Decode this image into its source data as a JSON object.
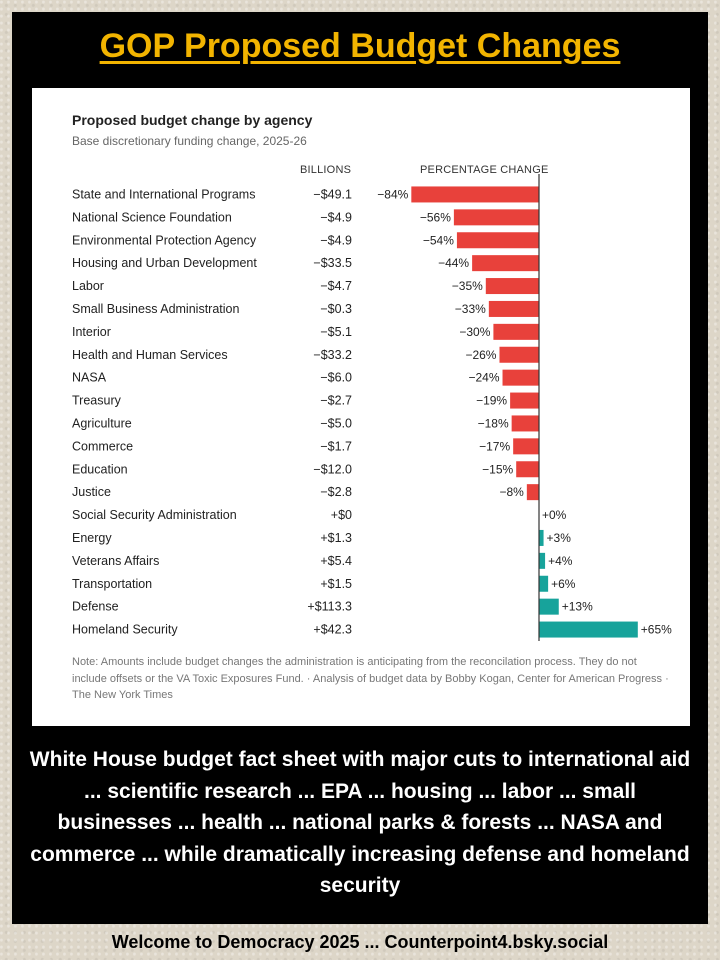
{
  "page": {
    "title": "GOP Proposed Budget Changes",
    "caption": "White House budget fact sheet with major cuts to international aid ... scientific research ... EPA ... housing ... labor ... small businesses ... health ... national parks & forests ... NASA and commerce ... while dramatically increasing defense and homeland security",
    "footer": "Welcome to Democracy 2025 ...  Counterpoint4.bsky.social"
  },
  "chart_data": {
    "type": "bar",
    "orientation": "horizontal",
    "title": "Proposed budget change by agency",
    "subtitle": "Base discretionary funding change, 2025-26",
    "billions_header": "BILLIONS",
    "percent_header": "PERCENTAGE CHANGE",
    "colors": {
      "negative": "#e8413b",
      "positive": "#17a39b"
    },
    "xlim": [
      -84,
      65
    ],
    "categories": [
      "State and International Programs",
      "National Science Foundation",
      "Environmental Protection Agency",
      "Housing and Urban Development",
      "Labor",
      "Small Business Administration",
      "Interior",
      "Health and Human Services",
      "NASA",
      "Treasury",
      "Agriculture",
      "Commerce",
      "Education",
      "Justice",
      "Social Security Administration",
      "Energy",
      "Veterans Affairs",
      "Transportation",
      "Defense",
      "Homeland Security"
    ],
    "billions": [
      "−$49.1",
      "−$4.9",
      "−$4.9",
      "−$33.5",
      "−$4.7",
      "−$0.3",
      "−$5.1",
      "−$33.2",
      "−$6.0",
      "−$2.7",
      "−$5.0",
      "−$1.7",
      "−$12.0",
      "−$2.8",
      "+$0",
      "+$1.3",
      "+$5.4",
      "+$1.5",
      "+$113.3",
      "+$42.3"
    ],
    "percent_labels": [
      "−84%",
      "−56%",
      "−54%",
      "−44%",
      "−35%",
      "−33%",
      "−30%",
      "−26%",
      "−24%",
      "−19%",
      "−18%",
      "−17%",
      "−15%",
      "−8%",
      "+0%",
      "+3%",
      "+4%",
      "+6%",
      "+13%",
      "+65%"
    ],
    "values": [
      -84,
      -56,
      -54,
      -44,
      -35,
      -33,
      -30,
      -26,
      -24,
      -19,
      -18,
      -17,
      -15,
      -8,
      0,
      3,
      4,
      6,
      13,
      65
    ],
    "note": "Note: Amounts include budget changes the administration is anticipating from the reconcilation process. They do not include offsets or the VA Toxic Exposures Fund. · Analysis of budget data by Bobby Kogan, Center for American Progress · The New York Times"
  }
}
